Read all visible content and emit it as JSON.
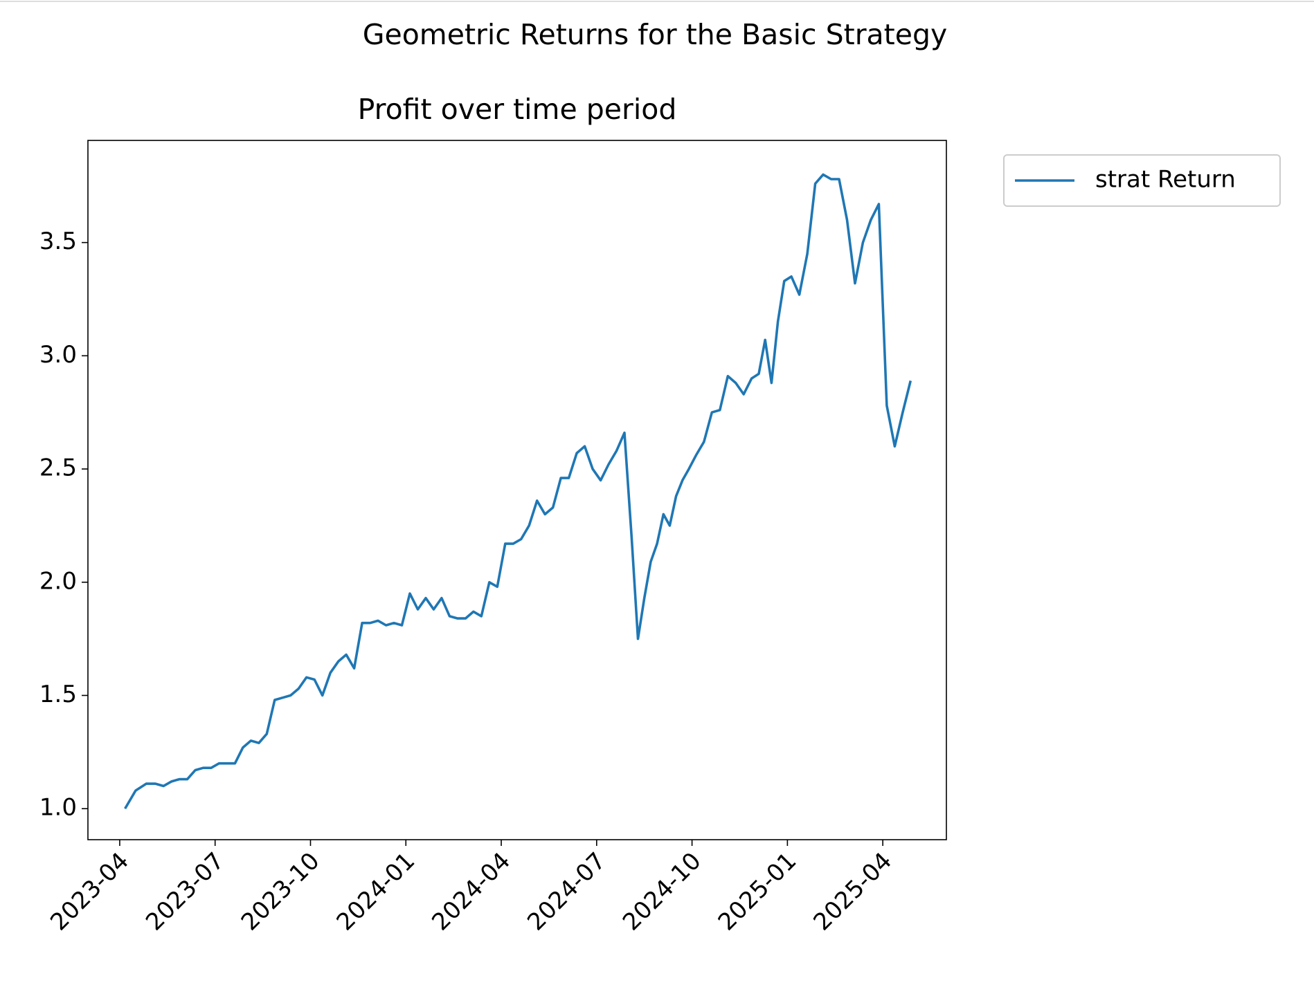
{
  "chart_data": {
    "type": "line",
    "title": "Geometric Returns for the Basic Strategy",
    "subtitle": "Profit over time period",
    "x": [
      "2023-04",
      "2023-04",
      "2023-04",
      "2023-05",
      "2023-05",
      "2023-05",
      "2023-05",
      "2023-06",
      "2023-06",
      "2023-06",
      "2023-06",
      "2023-07",
      "2023-07",
      "2023-07",
      "2023-07",
      "2023-08",
      "2023-08",
      "2023-08",
      "2023-08",
      "2023-09",
      "2023-09",
      "2023-09",
      "2023-09",
      "2023-10",
      "2023-10",
      "2023-10",
      "2023-10",
      "2023-11",
      "2023-11",
      "2023-11",
      "2023-11",
      "2023-12",
      "2023-12",
      "2023-12",
      "2023-12",
      "2024-01",
      "2024-01",
      "2024-01",
      "2024-01",
      "2024-02",
      "2024-02",
      "2024-02",
      "2024-02",
      "2024-03",
      "2024-03",
      "2024-03",
      "2024-03",
      "2024-04",
      "2024-04",
      "2024-04",
      "2024-04",
      "2024-05",
      "2024-05",
      "2024-05",
      "2024-05",
      "2024-06",
      "2024-06",
      "2024-06",
      "2024-06",
      "2024-07",
      "2024-07",
      "2024-07",
      "2024-07",
      "2024-08",
      "2024-08",
      "2024-08",
      "2024-08",
      "2024-08",
      "2024-09",
      "2024-09",
      "2024-09",
      "2024-09",
      "2024-09",
      "2024-10",
      "2024-10",
      "2024-10",
      "2024-10",
      "2024-11",
      "2024-11",
      "2024-11",
      "2024-11",
      "2024-12",
      "2024-12",
      "2024-12",
      "2024-12",
      "2024-12",
      "2025-01",
      "2025-01",
      "2025-01",
      "2025-01",
      "2025-02",
      "2025-02",
      "2025-02",
      "2025-02",
      "2025-03",
      "2025-03",
      "2025-03",
      "2025-03",
      "2025-04",
      "2025-04",
      "2025-04",
      "2025-04"
    ],
    "series": [
      {
        "name": "strat Return",
        "color": "#1f77b4",
        "values": [
          1.0,
          1.08,
          1.11,
          1.11,
          1.1,
          1.12,
          1.13,
          1.13,
          1.17,
          1.18,
          1.18,
          1.2,
          1.2,
          1.2,
          1.27,
          1.3,
          1.29,
          1.33,
          1.48,
          1.49,
          1.5,
          1.53,
          1.58,
          1.57,
          1.5,
          1.6,
          1.65,
          1.68,
          1.62,
          1.82,
          1.82,
          1.83,
          1.81,
          1.82,
          1.81,
          1.95,
          1.88,
          1.93,
          1.88,
          1.93,
          1.85,
          1.84,
          1.84,
          1.87,
          1.85,
          2.0,
          1.98,
          2.17,
          2.17,
          2.19,
          2.25,
          2.36,
          2.3,
          2.33,
          2.46,
          2.46,
          2.57,
          2.6,
          2.5,
          2.45,
          2.52,
          2.58,
          2.66,
          2.2,
          1.75,
          1.93,
          2.09,
          2.17,
          2.3,
          2.25,
          2.38,
          2.45,
          2.5,
          2.56,
          2.62,
          2.75,
          2.76,
          2.91,
          2.88,
          2.83,
          2.9,
          2.92,
          3.07,
          2.88,
          3.15,
          3.33,
          3.35,
          3.27,
          3.45,
          3.76,
          3.8,
          3.78,
          3.78,
          3.6,
          3.32,
          3.5,
          3.6,
          3.67,
          2.78,
          2.6,
          2.75,
          2.89
        ]
      }
    ],
    "xlim": [
      "2023-03",
      "2025-06"
    ],
    "xticks": [
      "2023-04",
      "2023-07",
      "2023-10",
      "2024-01",
      "2024-04",
      "2024-07",
      "2024-10",
      "2025-01",
      "2025-04"
    ],
    "ylim": [
      0.863,
      3.951
    ],
    "yticks": [
      {
        "value": 1,
        "label": "1.0"
      },
      1.5,
      {
        "value": 2,
        "label": "2.0"
      },
      2.5,
      {
        "value": 3,
        "label": "3.0"
      },
      3.5
    ],
    "legend": "outside upper right",
    "grid": false
  }
}
